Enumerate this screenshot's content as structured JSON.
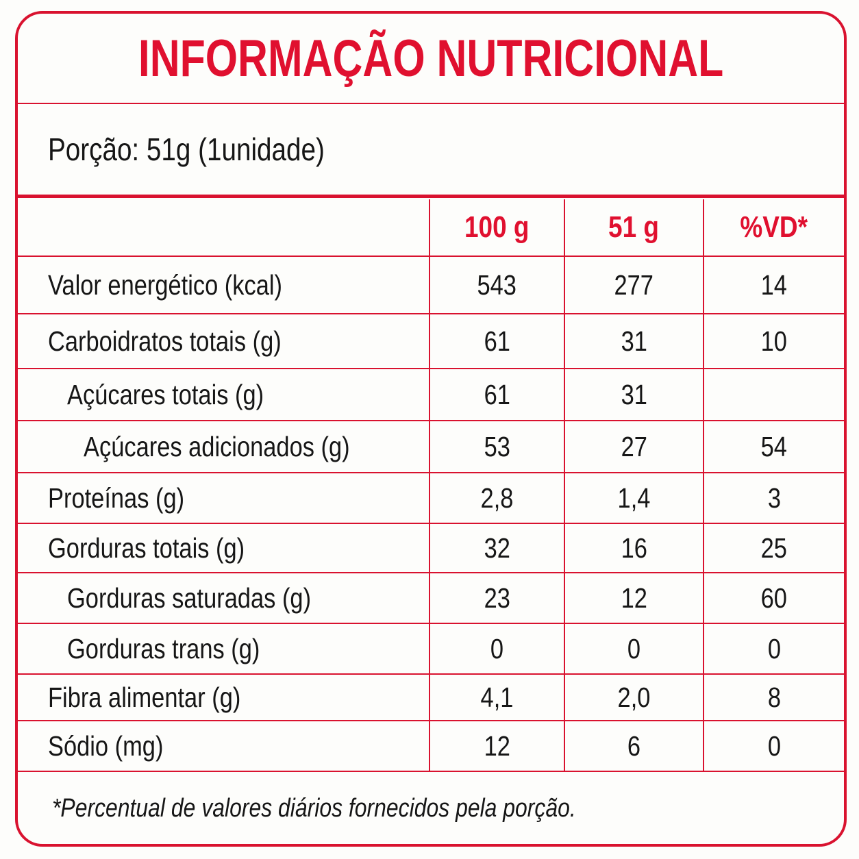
{
  "header": {
    "title": "INFORMAÇÃO NUTRICIONAL",
    "serving": "Porção: 51g (1unidade)"
  },
  "table": {
    "columns": [
      "100 g",
      "51 g",
      "%VD*"
    ],
    "rows": [
      [
        "Valor energético (kcal)",
        543,
        277,
        14
      ],
      [
        "Carboidratos totais (g)",
        61,
        31,
        10
      ],
      [
        "Açúcares totais (g)",
        61,
        31
      ],
      [
        "Açúcares adicionados (g)",
        53,
        27,
        54
      ],
      [
        "Proteínas (g)",
        "2,8",
        "1,4",
        3
      ],
      [
        "Gorduras totais (g)",
        32,
        16,
        25
      ],
      [
        "Gorduras saturadas (g)",
        23,
        12,
        60
      ],
      [
        "Gorduras trans (g)",
        0,
        0,
        0
      ],
      [
        "Fibra alimentar (g)",
        "4,1",
        "2,0",
        8
      ],
      [
        "Sódio (mg)",
        12,
        6,
        0
      ]
    ]
  },
  "footer": {
    "note": "*Percentual de valores diários fornecidos pela porção."
  }
}
